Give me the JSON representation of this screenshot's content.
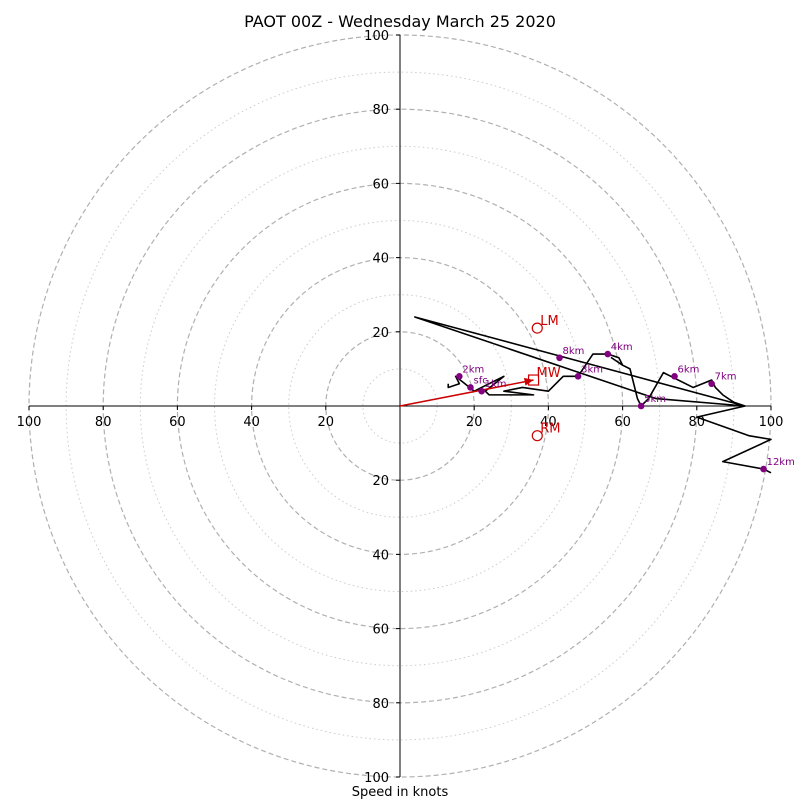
{
  "chart_data": {
    "type": "hodograph",
    "title": "PAOT 00Z - Wednesday March 25 2020",
    "xlabel": "Speed in knots",
    "range": [
      -100,
      100
    ],
    "ring_major": [
      20,
      40,
      60,
      80,
      100
    ],
    "ring_minor": [
      10,
      30,
      50,
      70,
      90
    ],
    "ticks_x": [
      {
        "v": -100,
        "label": "100"
      },
      {
        "v": -80,
        "label": "80"
      },
      {
        "v": -60,
        "label": "60"
      },
      {
        "v": -40,
        "label": "40"
      },
      {
        "v": -20,
        "label": "20"
      },
      {
        "v": 20,
        "label": "20"
      },
      {
        "v": 40,
        "label": "40"
      },
      {
        "v": 60,
        "label": "60"
      },
      {
        "v": 80,
        "label": "80"
      },
      {
        "v": 100,
        "label": "100"
      }
    ],
    "ticks_y": [
      {
        "v": 100,
        "label": "100"
      },
      {
        "v": 80,
        "label": "80"
      },
      {
        "v": 60,
        "label": "60"
      },
      {
        "v": 40,
        "label": "40"
      },
      {
        "v": 20,
        "label": "20"
      },
      {
        "v": -20,
        "label": "20"
      },
      {
        "v": -40,
        "label": "40"
      },
      {
        "v": -60,
        "label": "60"
      },
      {
        "v": -80,
        "label": "80"
      },
      {
        "v": -100,
        "label": "100"
      }
    ],
    "colors": {
      "trace": "#000000",
      "points": "#800080",
      "motion": "#cc0000",
      "major_ring": "#b0b0b0",
      "minor_ring": "#cccccc"
    },
    "trace": [
      [
        13,
        6
      ],
      [
        13,
        5
      ],
      [
        16,
        6
      ],
      [
        15,
        8
      ],
      [
        20,
        4
      ],
      [
        22,
        5
      ],
      [
        28,
        8
      ],
      [
        23,
        4
      ],
      [
        24,
        3
      ],
      [
        26,
        3
      ],
      [
        36,
        3
      ],
      [
        28,
        4
      ],
      [
        33,
        5
      ],
      [
        40,
        4
      ],
      [
        44,
        8
      ],
      [
        48,
        8
      ],
      [
        52,
        14
      ],
      [
        56,
        14
      ],
      [
        59,
        13
      ],
      [
        60,
        11
      ],
      [
        57,
        13
      ],
      [
        60,
        11
      ],
      [
        62,
        10
      ],
      [
        64,
        2
      ],
      [
        65,
        0
      ],
      [
        67,
        2
      ],
      [
        71,
        9
      ],
      [
        73,
        8
      ],
      [
        79,
        5
      ],
      [
        84,
        7
      ],
      [
        85,
        5
      ],
      [
        87,
        3
      ],
      [
        90,
        1
      ],
      [
        93,
        0
      ],
      [
        69,
        2
      ],
      [
        4,
        24
      ],
      [
        93,
        0
      ],
      [
        80,
        -3
      ],
      [
        94,
        -8
      ],
      [
        100,
        -9
      ],
      [
        87,
        -15
      ],
      [
        98,
        -17
      ],
      [
        100,
        -18
      ]
    ],
    "points": [
      {
        "label": "sfc",
        "u": 19,
        "v": 5
      },
      {
        "label": "1km",
        "u": 22,
        "v": 4
      },
      {
        "label": "2km",
        "u": 16,
        "v": 8
      },
      {
        "label": "3km",
        "u": 48,
        "v": 8
      },
      {
        "label": "4km",
        "u": 56,
        "v": 14
      },
      {
        "label": "5km",
        "u": 65,
        "v": 0
      },
      {
        "label": "6km",
        "u": 74,
        "v": 8
      },
      {
        "label": "7km",
        "u": 84,
        "v": 6
      },
      {
        "label": "8km",
        "u": 43,
        "v": 13
      },
      {
        "label": "12km",
        "u": 98,
        "v": -17
      }
    ],
    "storm_motion": [
      {
        "label": "LM",
        "u": 37,
        "v": 21,
        "marker": "circle"
      },
      {
        "label": "MW",
        "u": 36,
        "v": 7,
        "marker": "square"
      },
      {
        "label": "RM",
        "u": 37,
        "v": -8,
        "marker": "circle"
      }
    ],
    "shear_vector": {
      "from": [
        0,
        0
      ],
      "to": [
        36,
        7
      ]
    }
  }
}
